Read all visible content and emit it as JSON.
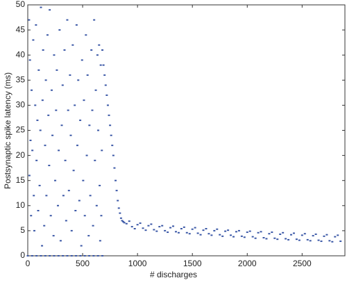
{
  "chart_data": {
    "type": "scatter",
    "x_label": "# discharges",
    "y_label": "Postsynaptic spike latency (ms)",
    "xlim": [
      0,
      2890
    ],
    "ylim": [
      0,
      50
    ],
    "xticks": [
      0,
      500,
      1000,
      1500,
      2000,
      2500
    ],
    "yticks": [
      0,
      5,
      10,
      15,
      20,
      25,
      30,
      35,
      40,
      45,
      50
    ],
    "x": [
      12,
      15,
      20,
      25,
      30,
      35,
      42,
      50,
      55,
      60,
      68,
      75,
      80,
      88,
      95,
      100,
      108,
      115,
      120,
      130,
      135,
      140,
      150,
      158,
      165,
      170,
      180,
      188,
      195,
      200,
      210,
      218,
      225,
      235,
      240,
      250,
      258,
      265,
      275,
      282,
      290,
      300,
      310,
      318,
      325,
      335,
      342,
      350,
      360,
      368,
      375,
      385,
      392,
      400,
      410,
      418,
      428,
      435,
      445,
      452,
      460,
      470,
      478,
      488,
      495,
      505,
      512,
      520,
      530,
      538,
      545,
      555,
      562,
      570,
      580,
      588,
      595,
      605,
      612,
      620,
      628,
      635,
      642,
      650,
      655,
      660,
      665,
      670,
      675,
      680,
      0,
      40,
      80,
      120,
      160,
      200,
      240,
      280,
      320,
      360,
      400,
      440,
      480,
      520,
      560,
      600,
      640,
      680,
      690,
      700,
      710,
      720,
      730,
      740,
      750,
      760,
      770,
      780,
      790,
      800,
      810,
      820,
      830,
      840,
      850,
      860,
      870,
      880,
      900,
      950,
      1000,
      1050,
      1100,
      1150,
      1200,
      1250,
      1300,
      1350,
      1400,
      1450,
      1500,
      1550,
      1600,
      1650,
      1700,
      1750,
      1800,
      1850,
      1900,
      1950,
      2000,
      2050,
      2100,
      2150,
      2200,
      2250,
      2300,
      2350,
      2400,
      2450,
      2500,
      2550,
      2600,
      2650,
      2700,
      2750,
      2800,
      2850,
      925,
      975,
      1025,
      1075,
      1125,
      1175,
      1225,
      1275,
      1325,
      1375,
      1425,
      1475,
      1525,
      1575,
      1625,
      1675,
      1725,
      1775,
      1825,
      1875,
      1925,
      1975,
      2025,
      2075,
      2125,
      2175,
      2225,
      2275,
      2325,
      2375,
      2425,
      2475,
      2525,
      2575,
      2625,
      2675,
      2725,
      2775,
      2825
    ],
    "series": [
      {
        "color": "#3a57a6",
        "values": [
          47,
          16,
          39,
          23,
          8,
          33,
          21,
          43,
          12,
          5,
          30,
          46,
          19,
          27,
          9,
          37,
          14,
          25,
          49.5,
          2,
          31,
          41,
          6,
          22,
          35,
          12,
          44,
          28,
          18,
          49,
          8,
          33,
          24,
          4,
          40,
          15,
          29,
          37,
          10,
          21,
          45,
          3,
          26,
          34,
          12,
          41,
          19,
          7,
          47,
          29,
          13,
          36,
          24,
          5,
          42,
          17,
          30,
          9,
          46,
          22,
          35,
          11,
          27,
          2,
          39,
          15,
          31,
          8,
          44,
          20,
          36,
          4,
          26,
          12,
          41,
          29,
          6,
          47,
          19,
          33,
          10,
          40,
          25,
          42,
          14,
          3,
          38,
          8,
          21,
          41,
          0,
          0,
          0,
          0,
          0,
          0,
          0,
          0,
          0,
          0,
          0,
          0,
          0,
          0,
          0,
          0,
          0,
          0,
          38,
          36,
          34,
          32,
          30,
          28,
          26,
          24,
          22,
          20,
          17.5,
          15,
          13,
          11,
          9.5,
          8.5,
          7.5,
          7,
          6.8,
          6.6,
          6.4,
          5.8,
          6.2,
          5.5,
          6.0,
          5.2,
          5.8,
          5.0,
          5.6,
          4.8,
          5.4,
          4.6,
          5.3,
          4.5,
          5.1,
          4.4,
          5.0,
          4.2,
          4.9,
          4.1,
          4.8,
          3.9,
          4.7,
          3.8,
          4.6,
          3.6,
          4.4,
          3.5,
          4.3,
          3.4,
          4.2,
          3.3,
          4.1,
          3.2,
          4.0,
          3.1,
          3.9,
          3.0,
          3.8,
          2.9,
          6.9,
          5.4,
          6.5,
          5.1,
          6.3,
          4.9,
          6.0,
          4.7,
          5.9,
          4.6,
          5.7,
          4.4,
          5.6,
          4.2,
          5.4,
          4.1,
          5.3,
          3.9,
          5.1,
          3.8,
          5.0,
          3.7,
          4.9,
          3.5,
          4.8,
          3.4,
          4.7,
          3.3,
          4.6,
          3.2,
          4.5,
          3.1,
          4.4,
          3.0,
          4.3,
          2.9,
          4.2,
          2.8,
          4.1
        ]
      }
    ]
  }
}
